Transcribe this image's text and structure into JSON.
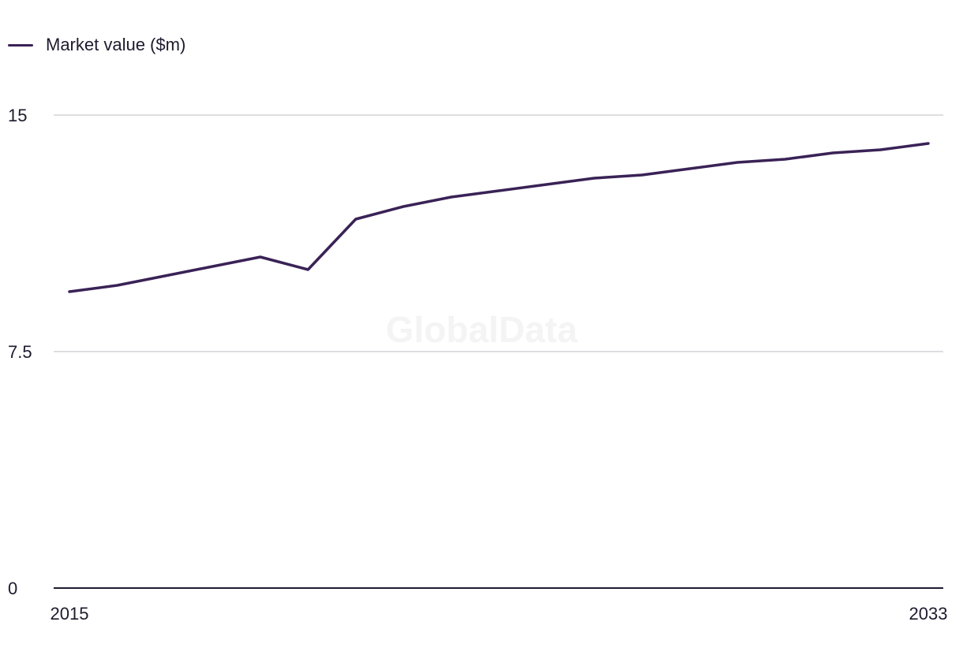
{
  "chart_data": {
    "type": "line",
    "watermark": "GlobalData",
    "x": [
      2015,
      2016,
      2017,
      2018,
      2019,
      2020,
      2021,
      2022,
      2023,
      2024,
      2025,
      2026,
      2027,
      2028,
      2029,
      2030,
      2031,
      2032,
      2033
    ],
    "series": [
      {
        "name": "Market value ($m)",
        "color": "#3a2256",
        "values": [
          9.4,
          9.6,
          9.9,
          10.2,
          10.5,
          10.1,
          11.7,
          12.1,
          12.4,
          12.6,
          12.8,
          13.0,
          13.1,
          13.3,
          13.5,
          13.6,
          13.8,
          13.9,
          14.1
        ]
      }
    ],
    "xticks": [
      {
        "value": 2015,
        "label": "2015"
      },
      {
        "value": 2033,
        "label": "2033"
      }
    ],
    "yticks": [
      {
        "value": 0,
        "label": "0"
      },
      {
        "value": 7.5,
        "label": "7.5"
      },
      {
        "value": 15,
        "label": "15"
      }
    ],
    "ylim": [
      0,
      15
    ],
    "xlim": [
      2015,
      2033
    ],
    "grid": true,
    "legend_position": "top-left"
  }
}
